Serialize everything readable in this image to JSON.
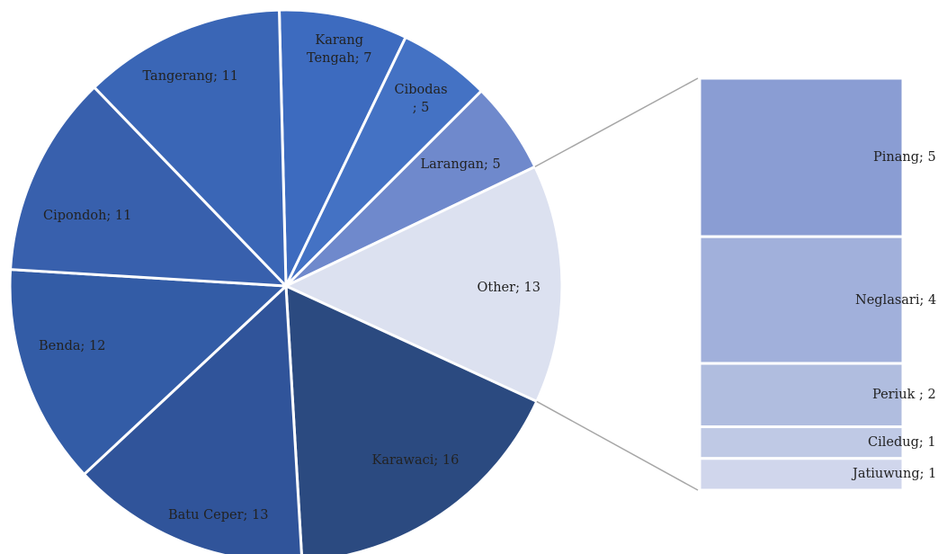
{
  "chart_data": [
    {
      "type": "pie",
      "values": [
        7,
        5,
        5,
        13,
        16,
        13,
        12,
        11,
        11
      ],
      "value_labels": [
        "Karang\nTengah; 7",
        "Cibodas\n; 5",
        "Larangan; 5",
        "Other; 13",
        "Karawaci; 16",
        "Batu Ceper; 13",
        "Benda; 12",
        "Cipondoh; 11",
        "Tangerang; 11"
      ],
      "colors": [
        "#3d6bbf",
        "#4472c4",
        "#6f89cc",
        "#dce1f0",
        "#2b4a80",
        "#30549a",
        "#335ca6",
        "#3860ad",
        "#3a66b6"
      ]
    },
    {
      "type": "stacked-bar",
      "values": [
        5,
        4,
        2,
        1,
        1
      ],
      "value_labels": [
        "Pinang; 5",
        "Neglasari; 4",
        "Periuk ; 2",
        "Ciledug; 1",
        "Jatiuwung; 1"
      ],
      "colors": [
        "#8a9dd3",
        "#a1b0db",
        "#b0bddf",
        "#bfc9e5",
        "#d0d6ec"
      ]
    }
  ]
}
